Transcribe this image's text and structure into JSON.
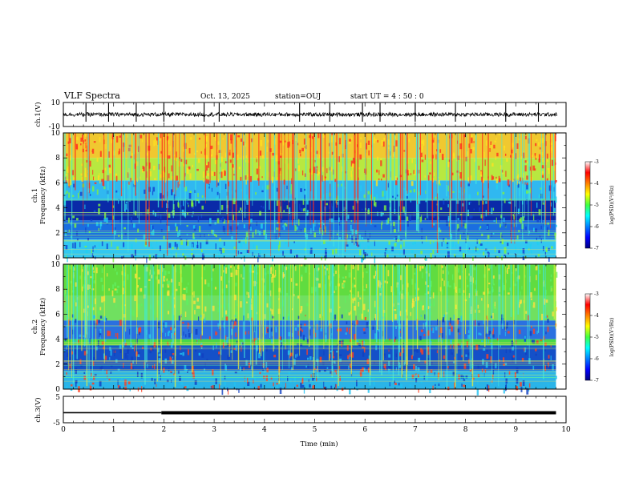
{
  "header": {
    "title": "VLF Spectra",
    "date": "Oct. 13, 2025",
    "station": "station=OUJ",
    "start_ut": "start  UT  =   4 : 50 : 0"
  },
  "chart_data": [
    {
      "type": "line",
      "id": "ch1-waveform",
      "ylabel": "ch.1(V)",
      "ylim": [
        -10,
        10
      ],
      "y_ticks": [
        "10",
        "-10"
      ],
      "xlim": [
        0,
        10
      ],
      "trace_color": "#000000",
      "baseline_v": 0,
      "spike_times_min": [
        0.45,
        0.9,
        1.45,
        2.0,
        2.8,
        3.1,
        4.7,
        5.3,
        5.95,
        6.3,
        7.0,
        7.8,
        8.8,
        9.45
      ]
    },
    {
      "type": "heatmap",
      "id": "ch1-spectrogram",
      "ylabel": "ch.1\nFrequency (kHz)",
      "ylim": [
        0,
        10
      ],
      "y_ticks": [
        "0",
        "2",
        "4",
        "6",
        "8",
        "10"
      ],
      "xlim": [
        0,
        9.8
      ],
      "colorbar": {
        "label": "log(PSD)(V²/Hz)",
        "range": [
          -7,
          -3
        ],
        "ticks": [
          "-3",
          "-4",
          "-5",
          "-6",
          "-7"
        ]
      },
      "bands_khz": [
        {
          "from": 0,
          "to": 1.5,
          "color": "#33c8f0"
        },
        {
          "from": 1.5,
          "to": 3.0,
          "color": "#1a6ee0"
        },
        {
          "from": 3.0,
          "to": 4.6,
          "color": "#0a2aa8"
        },
        {
          "from": 4.6,
          "to": 6.2,
          "color": "#30b8f0"
        },
        {
          "from": 6.2,
          "to": 8.0,
          "color": "#b8e840"
        },
        {
          "from": 8.0,
          "to": 10.0,
          "color": "#f0c830"
        }
      ]
    },
    {
      "type": "heatmap",
      "id": "ch2-spectrogram",
      "ylabel": "ch.2\nFrequency (kHz)",
      "ylim": [
        0,
        10
      ],
      "y_ticks": [
        "0",
        "2",
        "4",
        "6",
        "8",
        "10"
      ],
      "xlim": [
        0,
        9.8
      ],
      "colorbar": {
        "label": "log(PSD)(V²/Hz)",
        "range": [
          -7,
          -3
        ],
        "ticks": [
          "-3",
          "-4",
          "-5",
          "-6",
          "-7"
        ]
      },
      "bands_khz": [
        {
          "from": 0,
          "to": 1.5,
          "color": "#2ab4e8"
        },
        {
          "from": 1.5,
          "to": 3.5,
          "color": "#1450c8"
        },
        {
          "from": 3.5,
          "to": 4.0,
          "color": "#48d848"
        },
        {
          "from": 4.0,
          "to": 5.5,
          "color": "#2a70e0"
        },
        {
          "from": 5.5,
          "to": 7.5,
          "color": "#70e060"
        },
        {
          "from": 7.5,
          "to": 10.0,
          "color": "#60dc40"
        }
      ]
    },
    {
      "type": "line",
      "id": "ch3-trigger",
      "ylabel": "ch.3(V)",
      "ylim": [
        -5,
        5
      ],
      "y_ticks": [
        "5",
        "-5"
      ],
      "xlim": [
        0,
        10
      ],
      "x_ticks": [
        "0",
        "1",
        "2",
        "3",
        "4",
        "5",
        "6",
        "7",
        "8",
        "9",
        "10"
      ],
      "xlabel": "Time  (min)",
      "level_v": -1.2,
      "thick_from_min": 1.95,
      "line_end_min": 9.8
    }
  ]
}
